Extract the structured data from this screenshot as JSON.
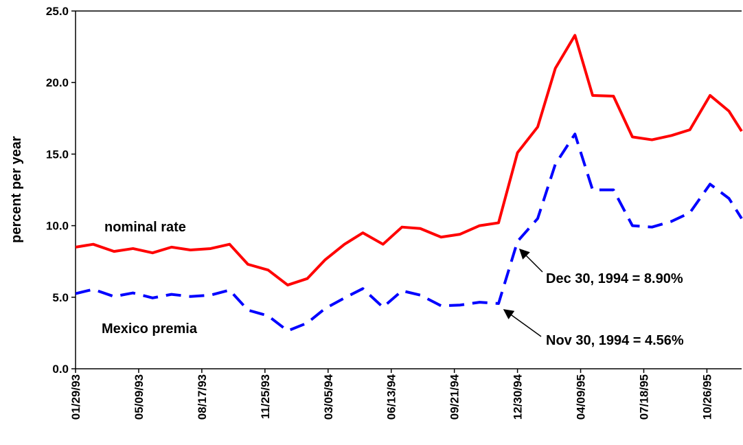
{
  "chart_data": {
    "type": "line",
    "ylabel": "percent per year",
    "x": [
      "01/29/93",
      "02/26/93",
      "03/31/93",
      "04/30/93",
      "05/31/93",
      "06/30/93",
      "07/30/93",
      "08/31/93",
      "09/30/93",
      "10/29/93",
      "11/30/93",
      "12/31/93",
      "01/31/94",
      "02/28/94",
      "03/31/94",
      "04/29/94",
      "05/31/94",
      "06/30/94",
      "07/29/94",
      "08/31/94",
      "09/30/94",
      "10/31/94",
      "11/30/94",
      "12/30/94",
      "01/31/95",
      "02/28/95",
      "03/31/95",
      "04/28/95",
      "05/31/95",
      "06/30/95",
      "07/31/95",
      "08/31/95",
      "09/29/95",
      "10/31/95",
      "11/30/95",
      "12/20/95"
    ],
    "series": [
      {
        "name": "nominal rate",
        "color": "#ff0000",
        "dash": false,
        "values": [
          8.5,
          8.7,
          8.2,
          8.4,
          8.1,
          8.5,
          8.3,
          8.4,
          8.7,
          7.3,
          6.9,
          5.85,
          6.3,
          7.6,
          8.7,
          9.5,
          8.7,
          9.9,
          9.8,
          9.2,
          9.4,
          10.0,
          10.2,
          15.1,
          16.9,
          21.0,
          23.3,
          19.1,
          19.05,
          16.2,
          16.0,
          16.3,
          16.7,
          19.1,
          18.0,
          16.6
        ]
      },
      {
        "name": "Mexico premia",
        "color": "#0000ff",
        "dash": true,
        "values": [
          5.25,
          5.55,
          5.05,
          5.3,
          4.95,
          5.2,
          5.05,
          5.15,
          5.5,
          4.1,
          3.7,
          2.65,
          3.2,
          4.2,
          4.95,
          5.6,
          4.3,
          5.45,
          5.15,
          4.4,
          4.45,
          4.65,
          4.56,
          8.9,
          10.5,
          14.3,
          16.4,
          12.5,
          12.5,
          10.0,
          9.9,
          10.3,
          10.9,
          12.9,
          11.9,
          10.5
        ]
      }
    ],
    "annotations": [
      "Dec 30, 1994 = 8.90%",
      "Nov 30, 1994 = 4.56%"
    ],
    "xlim": [
      "01/29/93",
      "12/20/95"
    ],
    "xticks": [
      "01/29/93",
      "05/09/93",
      "08/17/93",
      "11/25/93",
      "03/05/94",
      "06/13/94",
      "09/21/94",
      "12/30/94",
      "04/09/95",
      "07/18/95",
      "10/26/95"
    ],
    "ylim": [
      0,
      25
    ],
    "yticks": [
      {
        "value": 0,
        "label": "0.0"
      },
      {
        "value": 5,
        "label": "5.0"
      },
      {
        "value": 10,
        "label": "10.0"
      },
      {
        "value": 15,
        "label": "15.0"
      },
      {
        "value": 20,
        "label": "20.0"
      },
      {
        "value": 25,
        "label": "25.0"
      }
    ],
    "grid": false
  }
}
